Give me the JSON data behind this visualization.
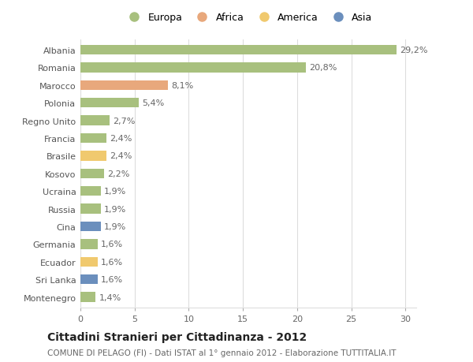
{
  "countries": [
    "Albania",
    "Romania",
    "Marocco",
    "Polonia",
    "Regno Unito",
    "Francia",
    "Brasile",
    "Kosovo",
    "Ucraina",
    "Russia",
    "Cina",
    "Germania",
    "Ecuador",
    "Sri Lanka",
    "Montenegro"
  ],
  "values": [
    29.2,
    20.8,
    8.1,
    5.4,
    2.7,
    2.4,
    2.4,
    2.2,
    1.9,
    1.9,
    1.9,
    1.6,
    1.6,
    1.6,
    1.4
  ],
  "labels": [
    "29,2%",
    "20,8%",
    "8,1%",
    "5,4%",
    "2,7%",
    "2,4%",
    "2,4%",
    "2,2%",
    "1,9%",
    "1,9%",
    "1,9%",
    "1,6%",
    "1,6%",
    "1,6%",
    "1,4%"
  ],
  "continents": [
    "Europa",
    "Europa",
    "Africa",
    "Europa",
    "Europa",
    "Europa",
    "America",
    "Europa",
    "Europa",
    "Europa",
    "Asia",
    "Europa",
    "America",
    "Asia",
    "Europa"
  ],
  "colors": {
    "Europa": "#a8c07e",
    "Africa": "#e8a87c",
    "America": "#f0c96e",
    "Asia": "#6b8fbd"
  },
  "xlim": [
    0,
    31
  ],
  "xticks": [
    0,
    5,
    10,
    15,
    20,
    25,
    30
  ],
  "title": "Cittadini Stranieri per Cittadinanza - 2012",
  "subtitle": "COMUNE DI PELAGO (FI) - Dati ISTAT al 1° gennaio 2012 - Elaborazione TUTTITALIA.IT",
  "background_color": "#ffffff",
  "grid_color": "#dddddd",
  "bar_height": 0.55,
  "label_fontsize": 8,
  "tick_fontsize": 8,
  "title_fontsize": 10,
  "subtitle_fontsize": 7.5,
  "legend_order": [
    "Europa",
    "Africa",
    "America",
    "Asia"
  ]
}
